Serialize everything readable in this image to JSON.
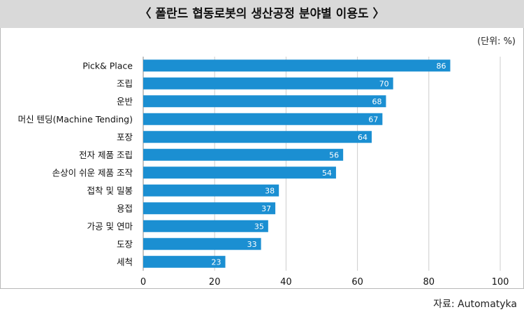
{
  "title": "〈 폴란드 협동로봇의 생산공정 분야별 이용도 〉",
  "unit_label": "(단위: %)",
  "source_label": "자료: Automatyka",
  "colors": {
    "bar": "#1b8fd2",
    "grid": "#cccccc",
    "title_bg": "#d9d9d9"
  },
  "chart_data": {
    "type": "bar",
    "orientation": "horizontal",
    "title": "〈 폴란드 협동로봇의 생산공정 분야별 이용도 〉",
    "xlabel": "",
    "ylabel": "",
    "categories": [
      "Pick& Place",
      "조립",
      "운반",
      "머신 텐딩(Machine Tending)",
      "포장",
      "전자 제품 조립",
      "손상이 쉬운 제품 조작",
      "접착 및 밀봉",
      "용접",
      "가공 및 연마",
      "도장",
      "세척"
    ],
    "values": [
      86,
      70,
      68,
      67,
      64,
      56,
      54,
      38,
      37,
      35,
      33,
      23
    ],
    "xlim": [
      0,
      100
    ],
    "xticks": [
      0,
      20,
      40,
      60,
      80,
      100
    ],
    "grid": true
  }
}
